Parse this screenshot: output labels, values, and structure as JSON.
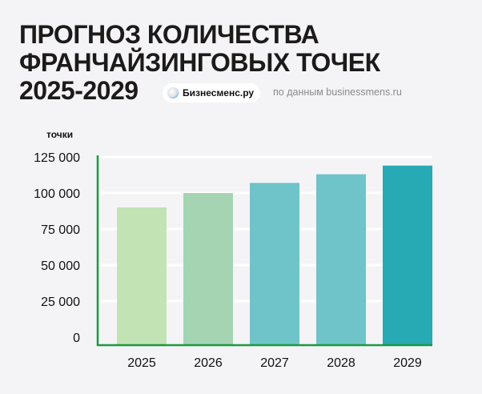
{
  "header": {
    "title_lines": [
      "ПРОГНОЗ КОЛИЧЕСТВА",
      "ФРАНЧАЙЗИНГОВЫХ ТОЧЕК",
      "2025-2029"
    ],
    "brand": "Бизнесменс.ру",
    "source": "по данным businessmens.ru"
  },
  "chart_data": {
    "type": "bar",
    "title": "ПРОГНОЗ КОЛИЧЕСТВА ФРАНЧАЙЗИНГОВЫХ ТОЧЕК 2025-2029",
    "xlabel": "",
    "ylabel": "точки",
    "categories": [
      "2025",
      "2026",
      "2027",
      "2028",
      "2029"
    ],
    "values": [
      90000,
      100000,
      107000,
      113000,
      119000
    ],
    "colors": [
      "#c2e3b4",
      "#a5d4b3",
      "#6fc4ca",
      "#6fc4ca",
      "#27aab3"
    ],
    "ylim": [
      0,
      125000
    ],
    "yticks": [
      0,
      25000,
      50000,
      75000,
      100000,
      125000
    ],
    "ytick_labels": [
      "0",
      "25 000",
      "50 000",
      "75 000",
      "100 000",
      "125 000"
    ],
    "grid": true,
    "axis_color": "#1a9a3e"
  }
}
